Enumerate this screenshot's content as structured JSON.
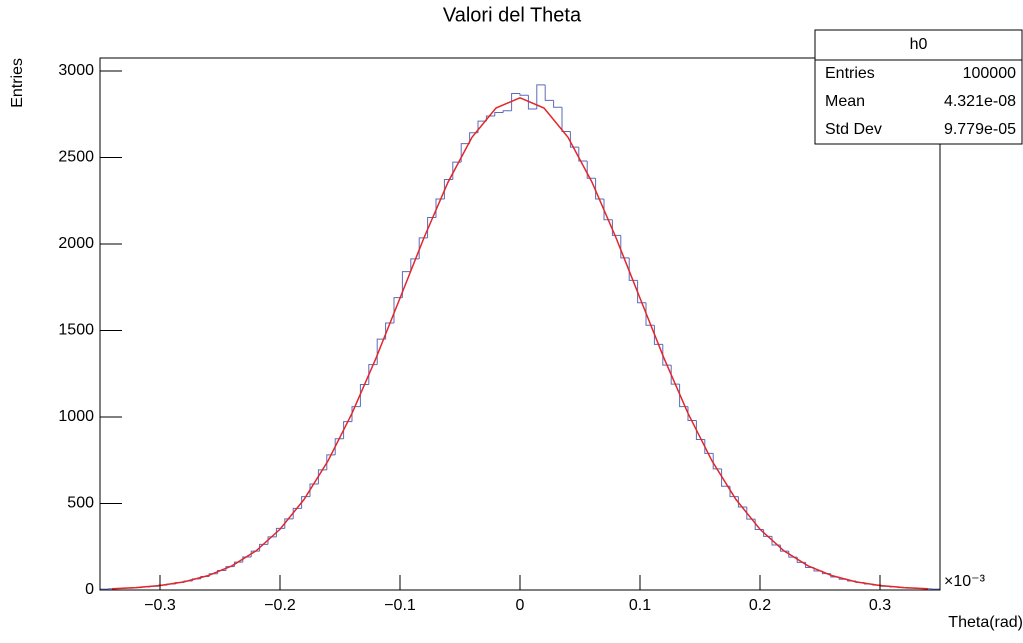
{
  "chart_data": {
    "type": "histogram",
    "title": "Valori del Theta",
    "xlabel": "Theta(rad)",
    "ylabel": "Entries",
    "x_multiplier": "×10⁻³",
    "color": "#5b6bb8",
    "bins": [
      -0.35,
      -0.343,
      -0.336,
      -0.329,
      -0.322,
      -0.315,
      -0.308,
      -0.301,
      -0.294,
      -0.287,
      -0.28,
      -0.273,
      -0.266,
      -0.259,
      -0.252,
      -0.245,
      -0.238,
      -0.231,
      -0.224,
      -0.217,
      -0.21,
      -0.203,
      -0.196,
      -0.189,
      -0.182,
      -0.175,
      -0.168,
      -0.161,
      -0.154,
      -0.147,
      -0.14,
      -0.133,
      -0.126,
      -0.119,
      -0.112,
      -0.105,
      -0.098,
      -0.091,
      -0.084,
      -0.077,
      -0.07,
      -0.063,
      -0.056,
      -0.049,
      -0.042,
      -0.035,
      -0.028,
      -0.021,
      -0.014,
      -0.007,
      0,
      0.007,
      0.014,
      0.021,
      0.028,
      0.035,
      0.042,
      0.049,
      0.056,
      0.063,
      0.07,
      0.077,
      0.084,
      0.091,
      0.098,
      0.105,
      0.112,
      0.119,
      0.126,
      0.133,
      0.14,
      0.147,
      0.154,
      0.161,
      0.168,
      0.175,
      0.182,
      0.189,
      0.196,
      0.203,
      0.21,
      0.217,
      0.224,
      0.231,
      0.238,
      0.245,
      0.252,
      0.259,
      0.266,
      0.273,
      0.28,
      0.287,
      0.294,
      0.301,
      0.308,
      0.315,
      0.322,
      0.329,
      0.336,
      0.343,
      0.35
    ],
    "values": [
      5,
      7,
      9,
      11,
      14,
      18,
      22,
      28,
      35,
      43,
      52,
      64,
      78,
      94,
      113,
      135,
      161,
      191,
      225,
      264,
      307,
      356,
      411,
      472,
      540,
      613,
      694,
      781,
      874,
      973,
      1060,
      1188,
      1303,
      1450,
      1543,
      1690,
      1840,
      1914,
      2035,
      2153,
      2260,
      2373,
      2473,
      2580,
      2643,
      2710,
      2740,
      2760,
      2770,
      2870,
      2860,
      2780,
      2920,
      2830,
      2790,
      2650,
      2560,
      2480,
      2380,
      2260,
      2140,
      2050,
      1920,
      1790,
      1660,
      1530,
      1420,
      1300,
      1190,
      1060,
      980,
      870,
      790,
      700,
      600,
      540,
      480,
      410,
      350,
      310,
      260,
      225,
      190,
      160,
      130,
      110,
      95,
      75,
      62,
      52,
      43,
      35,
      28,
      22,
      18,
      14,
      11,
      9,
      7,
      5
    ],
    "fit": {
      "color": "#e3262b",
      "x": [
        -0.34,
        -0.32,
        -0.3,
        -0.28,
        -0.26,
        -0.24,
        -0.22,
        -0.2,
        -0.18,
        -0.16,
        -0.14,
        -0.12,
        -0.1,
        -0.08,
        -0.06,
        -0.04,
        -0.02,
        0,
        0.02,
        0.04,
        0.06,
        0.08,
        0.1,
        0.12,
        0.14,
        0.16,
        0.18,
        0.2,
        0.22,
        0.24,
        0.26,
        0.28,
        0.3,
        0.32,
        0.34
      ],
      "values": [
        7,
        14,
        26,
        47,
        83,
        140,
        226,
        351,
        523,
        746,
        1021,
        1340,
        1687,
        2036,
        2357,
        2617,
        2786,
        2845,
        2786,
        2617,
        2357,
        2036,
        1687,
        1340,
        1021,
        746,
        523,
        351,
        226,
        140,
        83,
        47,
        26,
        14,
        7
      ]
    },
    "xlim": [
      -0.35,
      0.35
    ],
    "ylim": [
      0,
      3075
    ],
    "xticks": [
      {
        "value": -0.3,
        "label": "−0.3"
      },
      {
        "value": -0.2,
        "label": "−0.2"
      },
      {
        "value": -0.1,
        "label": "−0.1"
      },
      0,
      0.1,
      0.2,
      0.3
    ],
    "yticks": [
      0,
      500,
      1000,
      1500,
      2000,
      2500,
      3000
    ],
    "stats": {
      "title": "h0",
      "rows": [
        [
          "Entries",
          "100000"
        ],
        [
          "Mean",
          "4.321e-08"
        ],
        [
          "Std Dev",
          "9.779e-05"
        ]
      ]
    }
  }
}
